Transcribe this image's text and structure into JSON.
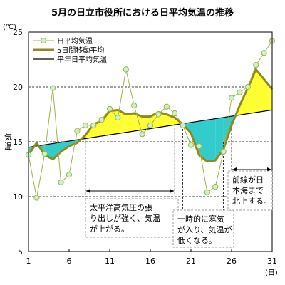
{
  "chart_data": {
    "type": "line",
    "title": "5月の日立市役所における日平均気温の推移",
    "y_unit": "(℃)",
    "ylabel": "気温",
    "xlabel_unit": "(日)",
    "ylim": [
      5,
      25
    ],
    "xlim": [
      1,
      31
    ],
    "y_ticks": [
      5,
      10,
      15,
      20,
      25
    ],
    "x_ticks": [
      1,
      6,
      11,
      16,
      21,
      26,
      31
    ],
    "grid": "horizontal dashed",
    "legend_position": "top-left",
    "colors": {
      "daily": "#a6b04a",
      "daily_marker_fill": "#c8f2c8",
      "moving_avg": "#8f8a1f",
      "normal": "#000000",
      "warm_fill": "#ffff33",
      "cool_fill": "#33cccc",
      "annotation_border": "#808080",
      "annotation_fill": "#ffffff"
    },
    "series": [
      {
        "name": "日平均気温",
        "x": [
          1,
          2,
          3,
          4,
          5,
          6,
          7,
          8,
          9,
          10,
          11,
          12,
          13,
          14,
          15,
          16,
          17,
          18,
          19,
          20,
          21,
          22,
          23,
          24,
          25,
          26,
          27,
          28,
          29,
          30,
          31
        ],
        "values": [
          13.8,
          9.9,
          13.9,
          19.9,
          11.3,
          12.0,
          16.0,
          16.5,
          16.5,
          17.0,
          18.0,
          17.2,
          21.6,
          18.3,
          15.7,
          16.5,
          17.5,
          18.2,
          17.6,
          16.5,
          14.7,
          14.6,
          10.4,
          10.9,
          14.1,
          19.0,
          19.5,
          20.0,
          22.0,
          23.1,
          24.2
        ]
      },
      {
        "name": "5日間移動平均",
        "x": [
          1,
          2,
          3,
          4,
          5,
          6,
          7,
          8,
          9,
          10,
          11,
          12,
          13,
          14,
          15,
          16,
          17,
          18,
          19,
          20,
          21,
          22,
          23,
          24,
          25,
          26,
          27,
          28,
          29,
          30,
          31
        ],
        "values": [
          13.8,
          14.9,
          13.8,
          13.4,
          14.1,
          14.6,
          14.9,
          15.6,
          16.6,
          16.9,
          17.8,
          17.9,
          17.5,
          17.6,
          17.3,
          17.3,
          17.7,
          17.5,
          17.2,
          16.6,
          15.8,
          13.8,
          13.2,
          13.3,
          14.3,
          16.5,
          18.3,
          19.9,
          21.6,
          20.7,
          19.8
        ]
      },
      {
        "name": "平年日平均気温",
        "x": [
          1,
          31
        ],
        "values": [
          14.5,
          17.9
        ]
      }
    ],
    "annotations": [
      {
        "text": [
          "太平洋高気圧の張",
          "り出しが強く、気温",
          "が上がる。"
        ],
        "x_from": 8,
        "x_to": 19
      },
      {
        "text": [
          "一時的に寒気",
          "が入り、気温が",
          "低くなる。"
        ],
        "x_from": 20,
        "x_to": 25
      },
      {
        "text": [
          "前線が日",
          "本海まで",
          "北上する。"
        ],
        "x_from": 26,
        "x_to": 31
      }
    ]
  }
}
